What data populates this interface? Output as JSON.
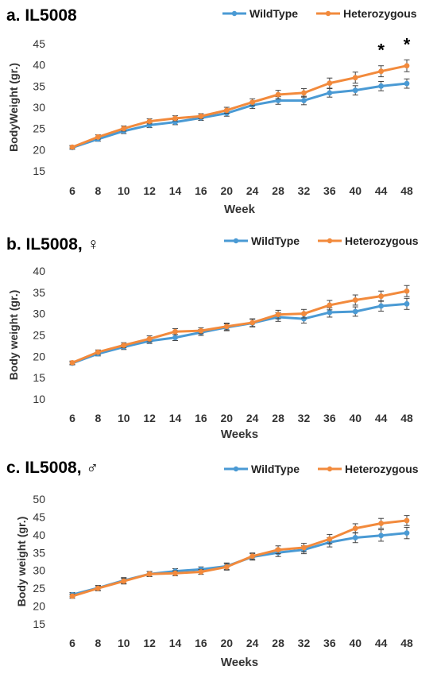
{
  "chart_data": [
    {
      "type": "line",
      "title": "a. IL5008",
      "xlabel": "Week",
      "ylabel": "BodyWeight (gr.)",
      "categories": [
        "6",
        "8",
        "10",
        "12",
        "14",
        "16",
        "20",
        "24",
        "28",
        "32",
        "36",
        "40",
        "44",
        "48"
      ],
      "yticks": [
        "15",
        "20",
        "25",
        "30",
        "35",
        "40",
        "45"
      ],
      "ylim": [
        15,
        45
      ],
      "legend_position": "top-right",
      "annotations": [
        {
          "category": "44",
          "text": "*"
        },
        {
          "category": "48",
          "text": "*"
        }
      ],
      "series": [
        {
          "name": "WildType",
          "color": "#4a9ad4",
          "values": [
            20.5,
            22.5,
            24.4,
            25.8,
            26.5,
            27.5,
            28.6,
            30.5,
            31.6,
            31.6,
            33.4,
            34.0,
            35.0,
            35.6
          ],
          "errors": [
            0.4,
            0.5,
            0.6,
            0.6,
            0.6,
            0.6,
            0.7,
            0.8,
            0.9,
            1.0,
            1.0,
            1.1,
            1.1,
            1.1
          ]
        },
        {
          "name": "Heterozygous",
          "color": "#f28a3c",
          "values": [
            20.6,
            23.0,
            25.0,
            26.7,
            27.4,
            27.9,
            29.3,
            31.2,
            33.0,
            33.4,
            35.7,
            37.0,
            38.5,
            39.8
          ],
          "errors": [
            0.4,
            0.5,
            0.6,
            0.6,
            0.6,
            0.6,
            0.7,
            0.8,
            1.0,
            1.0,
            1.2,
            1.3,
            1.3,
            1.4
          ]
        }
      ]
    },
    {
      "type": "line",
      "title": "b. IL5008, ♀",
      "xlabel": "Weeks",
      "ylabel": "Body weight (gr.)",
      "categories": [
        "6",
        "8",
        "10",
        "12",
        "14",
        "16",
        "20",
        "24",
        "28",
        "32",
        "36",
        "40",
        "44",
        "48"
      ],
      "yticks": [
        "10",
        "15",
        "20",
        "25",
        "30",
        "35",
        "40"
      ],
      "ylim": [
        10,
        40
      ],
      "legend_position": "top-right",
      "annotations": [],
      "series": [
        {
          "name": "WildType",
          "color": "#4a9ad4",
          "values": [
            18.4,
            20.6,
            22.2,
            23.6,
            24.4,
            25.6,
            26.8,
            27.8,
            29.2,
            28.8,
            30.3,
            30.5,
            31.8,
            32.3
          ],
          "errors": [
            0.4,
            0.5,
            0.6,
            0.6,
            0.7,
            0.7,
            0.8,
            0.9,
            1.0,
            1.0,
            1.1,
            1.1,
            1.2,
            1.3
          ]
        },
        {
          "name": "Heterozygous",
          "color": "#f28a3c",
          "values": [
            18.5,
            21.0,
            22.6,
            24.1,
            25.8,
            26.0,
            27.0,
            27.9,
            29.8,
            30.0,
            32.0,
            33.2,
            34.1,
            35.3
          ],
          "errors": [
            0.4,
            0.5,
            0.6,
            0.7,
            0.7,
            0.7,
            0.8,
            0.9,
            1.0,
            1.0,
            1.1,
            1.2,
            1.2,
            1.3
          ]
        }
      ]
    },
    {
      "type": "line",
      "title": "c. IL5008, ♂",
      "xlabel": "Weeks",
      "ylabel": "Body weight (gr.)",
      "categories": [
        "6",
        "8",
        "10",
        "12",
        "14",
        "16",
        "20",
        "24",
        "28",
        "32",
        "36",
        "40",
        "44",
        "48"
      ],
      "yticks": [
        "15",
        "20",
        "25",
        "30",
        "35",
        "40",
        "45",
        "50"
      ],
      "ylim": [
        15,
        50
      ],
      "legend_position": "top-right",
      "annotations": [],
      "series": [
        {
          "name": "WildType",
          "color": "#4a9ad4",
          "values": [
            23.2,
            25.1,
            27.2,
            29.0,
            29.8,
            30.3,
            31.2,
            33.8,
            35.0,
            35.8,
            37.9,
            39.2,
            39.8,
            40.5
          ],
          "errors": [
            0.6,
            0.7,
            0.8,
            0.7,
            0.7,
            0.7,
            0.9,
            0.9,
            1.1,
            1.1,
            1.3,
            1.4,
            1.6,
            1.6
          ]
        },
        {
          "name": "Heterozygous",
          "color": "#f28a3c",
          "values": [
            22.8,
            25.0,
            27.0,
            29.0,
            29.2,
            29.6,
            31.0,
            34.0,
            35.8,
            36.4,
            38.8,
            41.8,
            43.2,
            44.0
          ],
          "errors": [
            0.6,
            0.7,
            0.8,
            0.7,
            0.7,
            0.7,
            0.9,
            0.9,
            1.1,
            1.2,
            1.3,
            1.3,
            1.4,
            1.4
          ]
        }
      ]
    }
  ]
}
